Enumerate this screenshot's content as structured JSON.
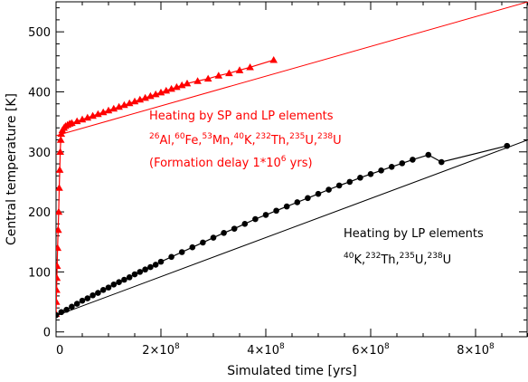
{
  "chart_data": {
    "type": "line",
    "xlabel": "Simulated time [yrs]",
    "ylabel": "Central temperature [K]",
    "xlim": [
      0,
      900000000
    ],
    "ylim": [
      -8,
      550
    ],
    "x_ticks": [
      0,
      200000000,
      400000000,
      600000000,
      800000000
    ],
    "x_tick_labels": [
      {
        "mant": "0",
        "exp": ""
      },
      {
        "mant": "2×10",
        "exp": "8"
      },
      {
        "mant": "4×10",
        "exp": "8"
      },
      {
        "mant": "6×10",
        "exp": "8"
      },
      {
        "mant": "8×10",
        "exp": "8"
      }
    ],
    "y_ticks": [
      0,
      100,
      200,
      300,
      400,
      500
    ],
    "y_tick_labels": [
      "0",
      "100",
      "200",
      "300",
      "400",
      "500"
    ],
    "grid": false,
    "colors": {
      "sp_lp": "#ff0000",
      "lp": "#000000",
      "axes": "#000000"
    },
    "series": [
      {
        "key": "sp_lp",
        "marker": "triangle",
        "x": [
          0,
          500000,
          1000000,
          1500000,
          2000000,
          3000000,
          4000000,
          5000000,
          6000000,
          7000000,
          8000000,
          9000000,
          10000000,
          12000000,
          15000000,
          18000000,
          22000000,
          26000000,
          30000000,
          40000000,
          50000000,
          60000000,
          70000000,
          80000000,
          90000000,
          100000000,
          110000000,
          120000000,
          130000000,
          140000000,
          150000000,
          160000000,
          170000000,
          180000000,
          190000000,
          200000000,
          210000000,
          220000000,
          230000000,
          240000000,
          250000000,
          270000000,
          290000000,
          310000000,
          330000000,
          350000000,
          370000000,
          415000000
        ],
        "y": [
          30,
          50,
          70,
          90,
          110,
          140,
          170,
          200,
          240,
          270,
          300,
          320,
          330,
          336,
          340,
          343,
          345,
          347,
          348,
          351,
          354,
          357,
          360,
          363,
          366,
          369,
          372,
          375,
          378,
          381,
          384,
          387,
          390,
          393,
          396,
          399,
          402,
          405,
          408,
          411,
          414,
          418,
          422,
          427,
          431,
          436,
          441,
          453
        ],
        "line_x": [
          0,
          900000000
        ],
        "line_y": [
          327,
          550
        ]
      },
      {
        "key": "lp",
        "marker": "circle",
        "x": [
          0,
          10000000,
          20000000,
          30000000,
          40000000,
          50000000,
          60000000,
          70000000,
          80000000,
          90000000,
          100000000,
          110000000,
          120000000,
          130000000,
          140000000,
          150000000,
          160000000,
          170000000,
          180000000,
          190000000,
          200000000,
          220000000,
          240000000,
          260000000,
          280000000,
          300000000,
          320000000,
          340000000,
          360000000,
          380000000,
          400000000,
          420000000,
          440000000,
          460000000,
          480000000,
          500000000,
          520000000,
          540000000,
          560000000,
          580000000,
          600000000,
          620000000,
          640000000,
          660000000,
          680000000,
          710000000,
          735000000,
          860000000
        ],
        "y": [
          28,
          33,
          37,
          42,
          47,
          52,
          56,
          61,
          65,
          70,
          74,
          79,
          83,
          87,
          91,
          96,
          100,
          104,
          108,
          112,
          117,
          125,
          133,
          141,
          149,
          157,
          165,
          172,
          180,
          188,
          195,
          202,
          209,
          216,
          223,
          230,
          237,
          244,
          250,
          257,
          263,
          269,
          275,
          281,
          287,
          295,
          283,
          310
        ],
        "line_x": [
          0,
          900000000
        ],
        "line_y": [
          27,
          320
        ]
      }
    ],
    "annotations": {
      "sp_lp": {
        "line1": "Heating by SP and LP elements",
        "isotopes": [
          {
            "mass": "26",
            "sym": "Al"
          },
          {
            "mass": "60",
            "sym": "Fe"
          },
          {
            "mass": "53",
            "sym": "Mn"
          },
          {
            "mass": "40",
            "sym": "K"
          },
          {
            "mass": "232",
            "sym": "Th"
          },
          {
            "mass": "235",
            "sym": "U"
          },
          {
            "mass": "238",
            "sym": "U"
          }
        ],
        "line3_pre": "(Formation delay 1*10",
        "line3_exp": "6",
        "line3_post": " yrs)"
      },
      "lp": {
        "line1": "Heating by LP elements",
        "isotopes": [
          {
            "mass": "40",
            "sym": "K"
          },
          {
            "mass": "232",
            "sym": "Th"
          },
          {
            "mass": "235",
            "sym": "U"
          },
          {
            "mass": "238",
            "sym": "U"
          }
        ]
      }
    }
  }
}
